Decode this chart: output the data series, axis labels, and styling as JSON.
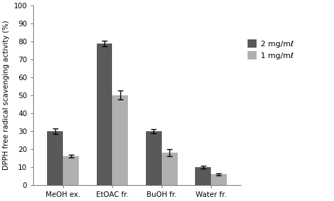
{
  "categories": [
    "MeOH ex.",
    "EtOAC fr.",
    "BuOH fr.",
    "Water fr."
  ],
  "series": [
    {
      "label": "2 mg/mℓ",
      "values": [
        30,
        79,
        30,
        10
      ],
      "errors": [
        1.5,
        1.5,
        1.0,
        0.8
      ],
      "color": "#595959"
    },
    {
      "label": "1 mg/mℓ",
      "values": [
        16,
        50,
        18,
        6
      ],
      "errors": [
        0.8,
        2.5,
        2.0,
        0.5
      ],
      "color": "#b0b0b0"
    }
  ],
  "ylabel": "DPPH free radical scavenging activity (%)",
  "ylim": [
    0,
    100
  ],
  "yticks": [
    0,
    10,
    20,
    30,
    40,
    50,
    60,
    70,
    80,
    90,
    100
  ],
  "bar_width": 0.32,
  "legend_loc": "upper right",
  "background_color": "#ffffff",
  "tick_fontsize": 7.5,
  "label_fontsize": 7.5,
  "legend_fontsize": 8,
  "figsize": [
    4.83,
    2.91
  ],
  "dpi": 100
}
